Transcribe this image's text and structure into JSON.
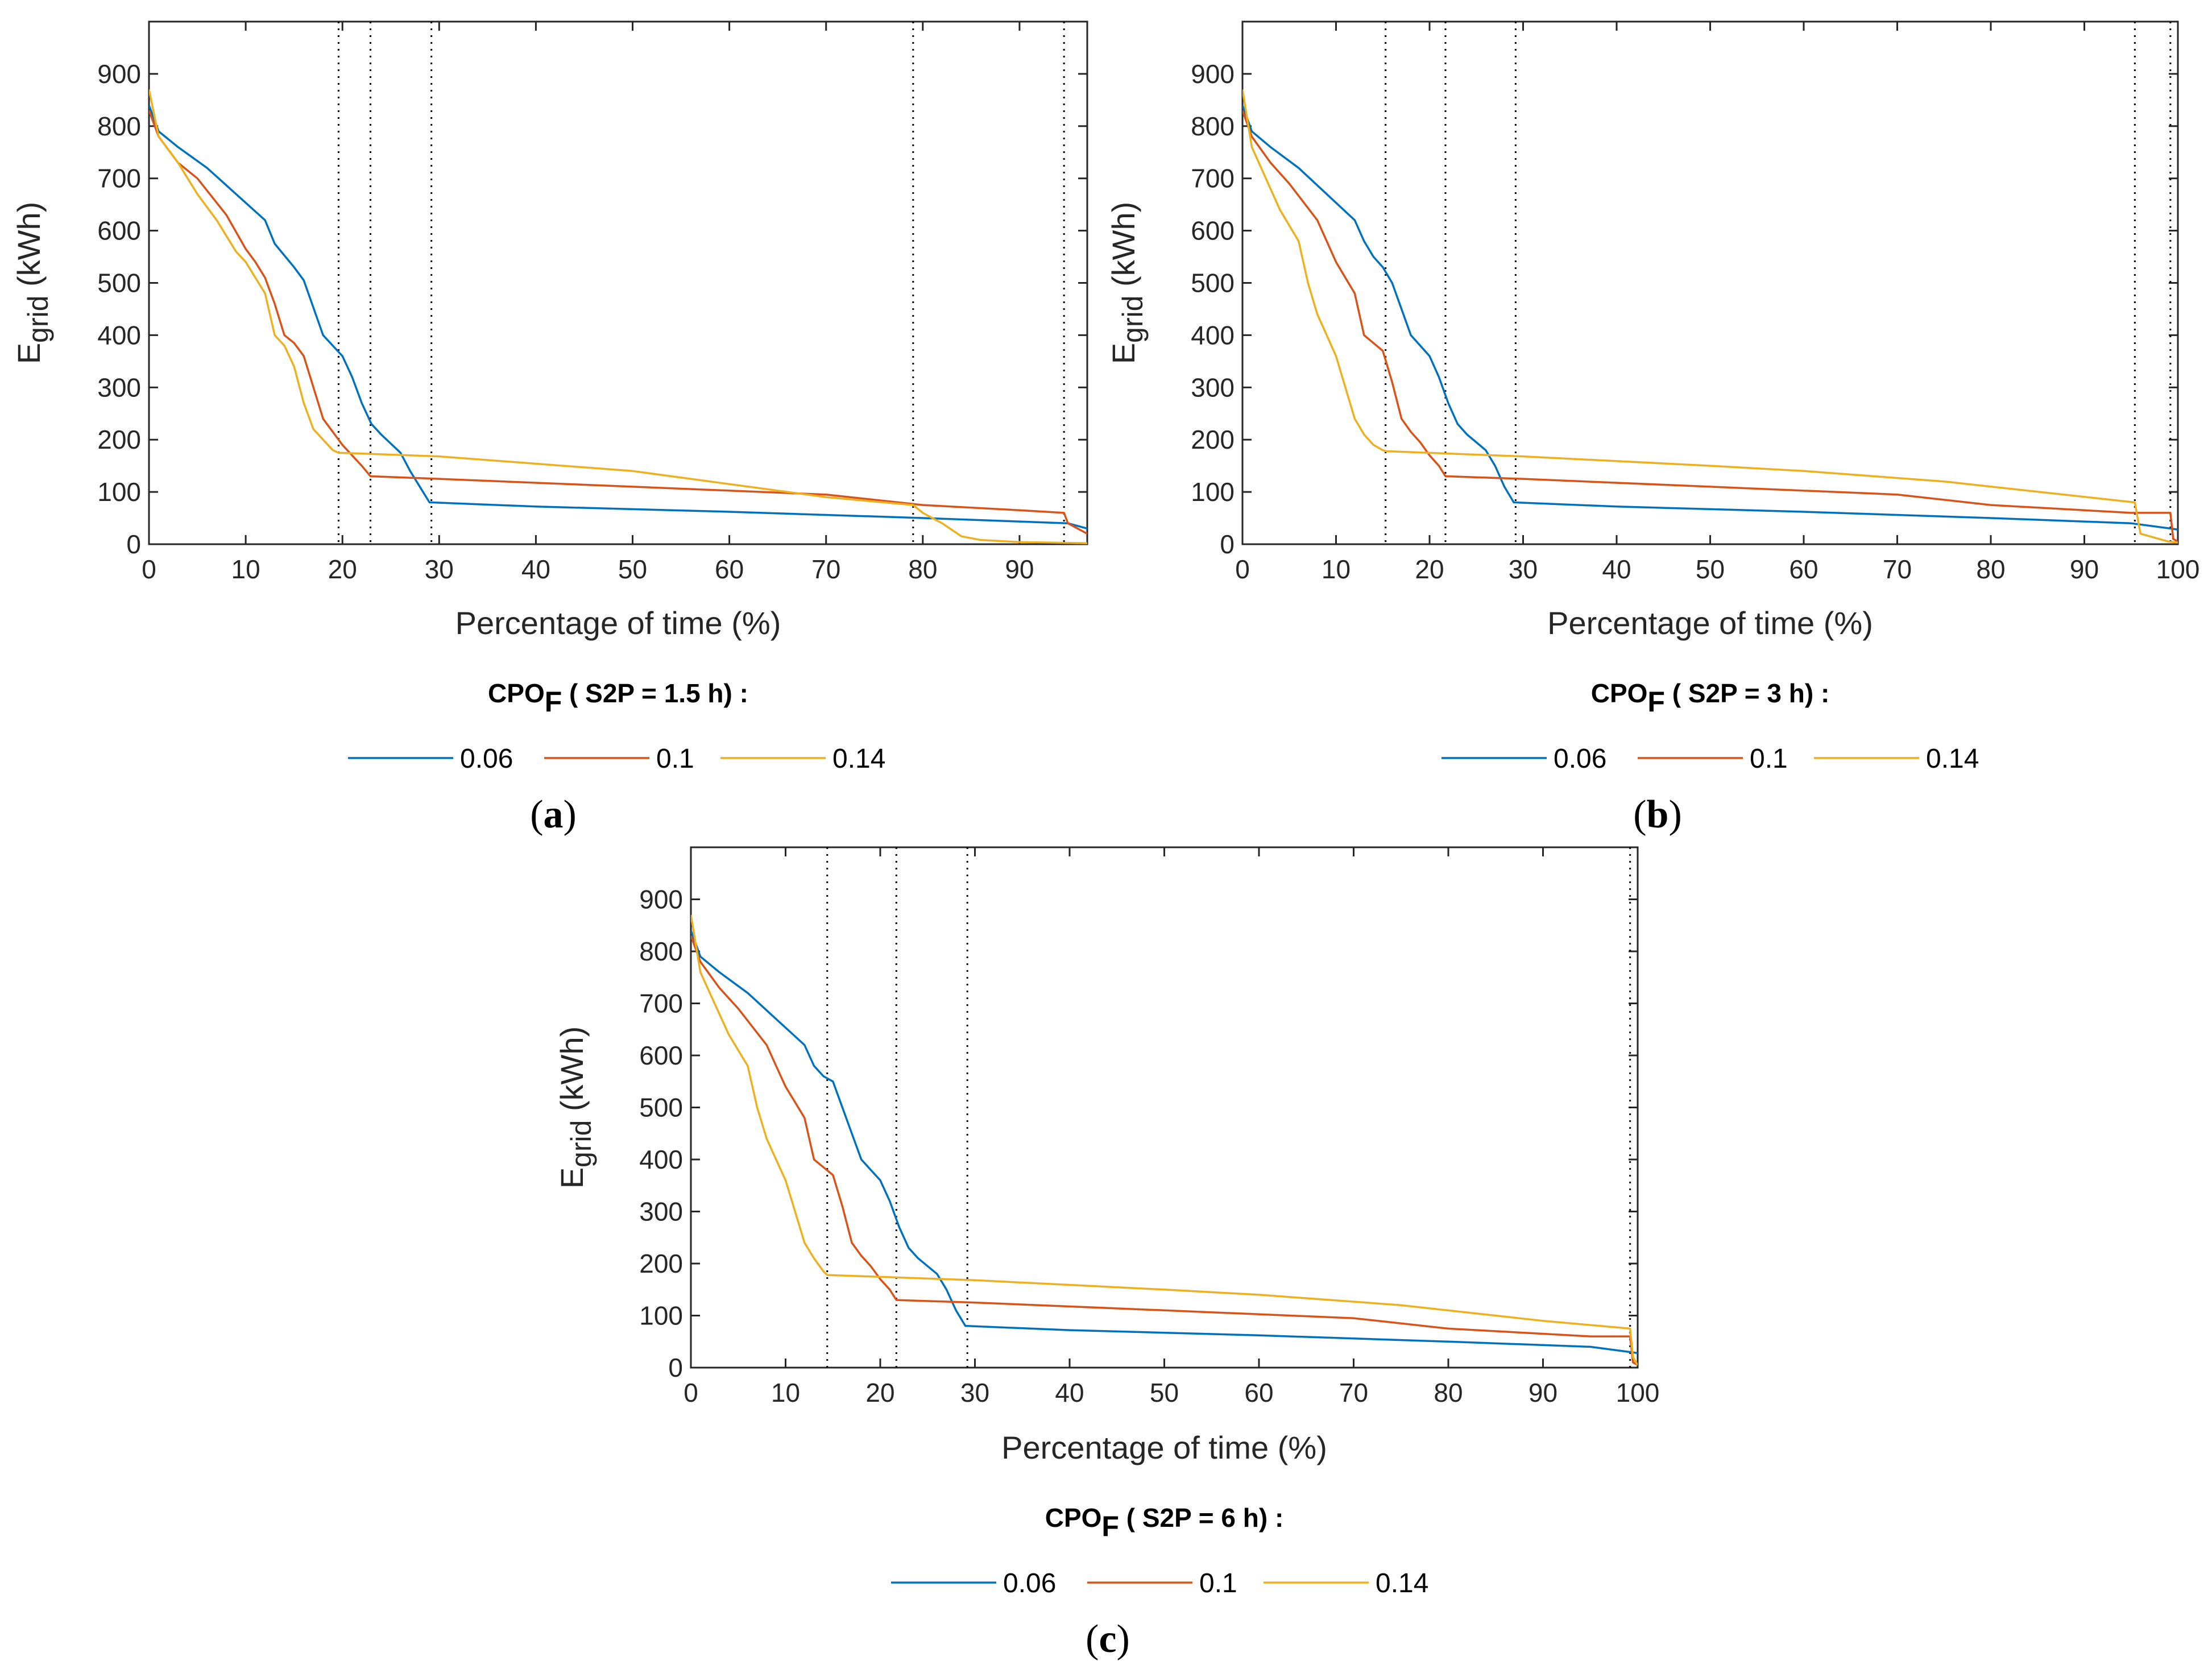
{
  "colors": {
    "s1": "#0072BD",
    "s2": "#D95319",
    "s3": "#EDB120"
  },
  "chart_data": [
    {
      "type": "line",
      "panel_label": "(a)",
      "panel_letter": "a",
      "xlabel": "Percentage of time (%)",
      "ylabel_main": "E",
      "ylabel_sub": "grid",
      "ylabel_unit": " (kWh)",
      "xlim": [
        0,
        97
      ],
      "ylim": [
        0,
        1000
      ],
      "xticks": [
        0,
        10,
        20,
        30,
        40,
        50,
        60,
        70,
        80,
        90
      ],
      "yticks": [
        0,
        100,
        200,
        300,
        400,
        500,
        600,
        700,
        800,
        900
      ],
      "vlines": [
        19.6,
        22.9,
        29.2,
        79.0,
        94.6
      ],
      "legend_title_main": "CPO",
      "legend_title_sub": "F",
      "legend_title_rest": " ( S2P = 1.5 h) :",
      "series": [
        {
          "name": "0.06",
          "x": [
            0,
            1,
            3,
            6,
            9,
            12,
            13,
            15,
            16,
            18,
            19,
            20,
            21,
            22,
            23,
            24,
            26,
            27,
            28,
            29,
            29.2,
            40,
            60,
            80,
            95,
            97
          ],
          "y": [
            840,
            790,
            760,
            720,
            670,
            620,
            575,
            530,
            505,
            400,
            380,
            360,
            320,
            270,
            230,
            210,
            175,
            140,
            110,
            80,
            80,
            72,
            62,
            50,
            40,
            30
          ]
        },
        {
          "name": "0.1",
          "x": [
            0,
            1,
            3,
            5,
            8,
            10,
            11,
            12,
            13,
            14,
            15,
            16,
            17,
            18,
            19,
            20,
            21,
            22,
            22.9,
            30,
            50,
            70,
            80,
            90,
            94.6,
            95,
            97
          ],
          "y": [
            830,
            780,
            730,
            700,
            630,
            565,
            540,
            510,
            460,
            400,
            385,
            360,
            300,
            240,
            215,
            190,
            170,
            150,
            130,
            125,
            110,
            95,
            75,
            65,
            60,
            40,
            20
          ]
        },
        {
          "name": "0.14",
          "x": [
            0,
            1,
            3,
            5,
            7,
            9,
            10,
            11,
            12,
            13,
            14,
            15,
            16,
            17,
            18,
            19,
            19.6,
            30,
            50,
            70,
            79,
            80,
            82,
            84,
            86,
            90,
            97
          ],
          "y": [
            870,
            780,
            730,
            670,
            620,
            560,
            540,
            510,
            480,
            400,
            380,
            340,
            270,
            220,
            200,
            180,
            175,
            168,
            140,
            90,
            75,
            60,
            40,
            15,
            8,
            4,
            2
          ]
        }
      ]
    },
    {
      "type": "line",
      "panel_label": "(b)",
      "panel_letter": "b",
      "xlabel": "Percentage of time (%)",
      "ylabel_main": "E",
      "ylabel_sub": "grid",
      "ylabel_unit": " (kWh)",
      "xlim": [
        0,
        100
      ],
      "ylim": [
        0,
        1000
      ],
      "xticks": [
        0,
        10,
        20,
        30,
        40,
        50,
        60,
        70,
        80,
        90,
        100
      ],
      "yticks": [
        0,
        100,
        200,
        300,
        400,
        500,
        600,
        700,
        800,
        900
      ],
      "vlines": [
        15.3,
        21.7,
        29.2,
        95.4,
        99.2
      ],
      "legend_title_main": "CPO",
      "legend_title_sub": "F",
      "legend_title_rest": " ( S2P = 3 h) :",
      "series": [
        {
          "name": "0.06",
          "x": [
            0,
            1,
            3,
            6,
            9,
            12,
            13,
            14,
            15,
            16,
            17,
            18,
            19,
            20,
            21,
            22,
            23,
            24,
            26,
            27,
            28,
            29,
            29.2,
            40,
            60,
            80,
            95,
            99.2,
            100
          ],
          "y": [
            840,
            790,
            760,
            720,
            670,
            620,
            580,
            550,
            530,
            500,
            450,
            400,
            380,
            360,
            320,
            270,
            230,
            210,
            180,
            150,
            110,
            80,
            80,
            72,
            62,
            50,
            40,
            30,
            28
          ]
        },
        {
          "name": "0.1",
          "x": [
            0,
            1,
            3,
            5,
            8,
            9,
            10,
            11,
            12,
            13,
            14,
            15,
            16,
            17,
            18,
            19,
            20,
            21,
            21.7,
            30,
            50,
            70,
            80,
            90,
            95,
            99.2,
            99.5,
            100
          ],
          "y": [
            830,
            780,
            730,
            690,
            620,
            580,
            540,
            510,
            480,
            400,
            385,
            370,
            310,
            240,
            215,
            195,
            170,
            150,
            130,
            125,
            110,
            95,
            75,
            65,
            60,
            60,
            10,
            5
          ]
        },
        {
          "name": "0.14",
          "x": [
            0,
            1,
            2,
            4,
            6,
            7,
            8,
            9,
            10,
            11,
            12,
            13,
            14,
            15,
            15.3,
            30,
            50,
            60,
            75,
            95.4,
            96,
            99,
            100
          ],
          "y": [
            870,
            760,
            720,
            640,
            580,
            500,
            440,
            400,
            360,
            300,
            240,
            210,
            190,
            180,
            178,
            168,
            150,
            140,
            120,
            80,
            20,
            5,
            3
          ]
        }
      ]
    },
    {
      "type": "line",
      "panel_label": "(c)",
      "panel_letter": "c",
      "xlabel": "Percentage of time (%)",
      "ylabel_main": "E",
      "ylabel_sub": "grid",
      "ylabel_unit": " (kWh)",
      "xlim": [
        0,
        100
      ],
      "ylim": [
        0,
        1000
      ],
      "xticks": [
        0,
        10,
        20,
        30,
        40,
        50,
        60,
        70,
        80,
        90,
        100
      ],
      "yticks": [
        0,
        100,
        200,
        300,
        400,
        500,
        600,
        700,
        800,
        900
      ],
      "vlines": [
        14.4,
        21.7,
        29.2,
        99.2
      ],
      "legend_title_main": "CPO",
      "legend_title_sub": "F",
      "legend_title_rest": " ( S2P = 6 h) :",
      "series": [
        {
          "name": "0.06",
          "x": [
            0,
            1,
            3,
            6,
            9,
            12,
            13,
            14,
            15,
            16,
            17,
            18,
            19,
            20,
            21,
            22,
            23,
            24,
            26,
            27,
            28,
            29,
            29.2,
            40,
            60,
            80,
            95,
            99.2,
            100
          ],
          "y": [
            840,
            790,
            760,
            720,
            670,
            620,
            580,
            560,
            550,
            500,
            450,
            400,
            380,
            360,
            320,
            270,
            230,
            210,
            180,
            150,
            110,
            80,
            80,
            72,
            62,
            50,
            40,
            30,
            28
          ]
        },
        {
          "name": "0.1",
          "x": [
            0,
            1,
            3,
            5,
            8,
            9,
            10,
            11,
            12,
            13,
            14,
            15,
            16,
            17,
            18,
            19,
            20,
            21,
            21.7,
            30,
            50,
            70,
            80,
            90,
            95,
            99.2,
            99.5,
            100
          ],
          "y": [
            830,
            780,
            730,
            690,
            620,
            580,
            540,
            510,
            480,
            400,
            385,
            370,
            310,
            240,
            215,
            195,
            170,
            150,
            130,
            125,
            110,
            95,
            75,
            65,
            60,
            60,
            10,
            5
          ]
        },
        {
          "name": "0.14",
          "x": [
            0,
            1,
            2,
            4,
            6,
            7,
            8,
            9,
            10,
            11,
            12,
            13,
            14,
            14.4,
            30,
            50,
            60,
            75,
            90,
            99.2,
            99.5,
            100
          ],
          "y": [
            870,
            760,
            720,
            640,
            580,
            500,
            440,
            400,
            360,
            300,
            240,
            210,
            185,
            178,
            168,
            150,
            140,
            120,
            90,
            75,
            20,
            5
          ]
        }
      ]
    }
  ]
}
